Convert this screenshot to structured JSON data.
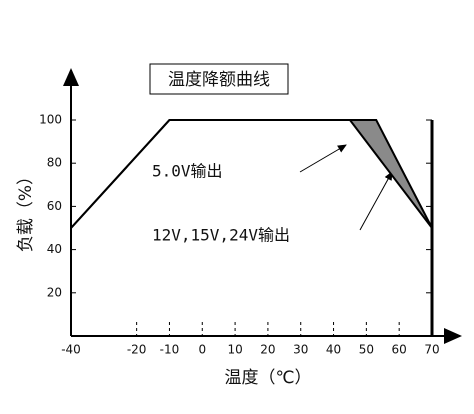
{
  "chart_data": {
    "type": "line",
    "title": "温度降额曲线",
    "xlabel": "温度（℃）",
    "ylabel": "负载（%）",
    "x": [
      -40,
      -10,
      45,
      53,
      70
    ],
    "series": [
      {
        "name": "5.0V输出",
        "color": "#000000",
        "values": [
          50,
          100,
          100,
          null,
          50
        ]
      },
      {
        "name": "12V,15V,24V输出",
        "color": "#000000",
        "values": [
          50,
          100,
          null,
          100,
          50
        ]
      }
    ],
    "fill_color": "#8a8a8a",
    "xlim": [
      -40,
      70
    ],
    "xticks": [
      -40,
      -20,
      -10,
      0,
      10,
      20,
      30,
      40,
      50,
      60,
      70
    ],
    "ylim": [
      0,
      100
    ],
    "yticks": [
      20,
      40,
      60,
      80,
      100
    ]
  }
}
